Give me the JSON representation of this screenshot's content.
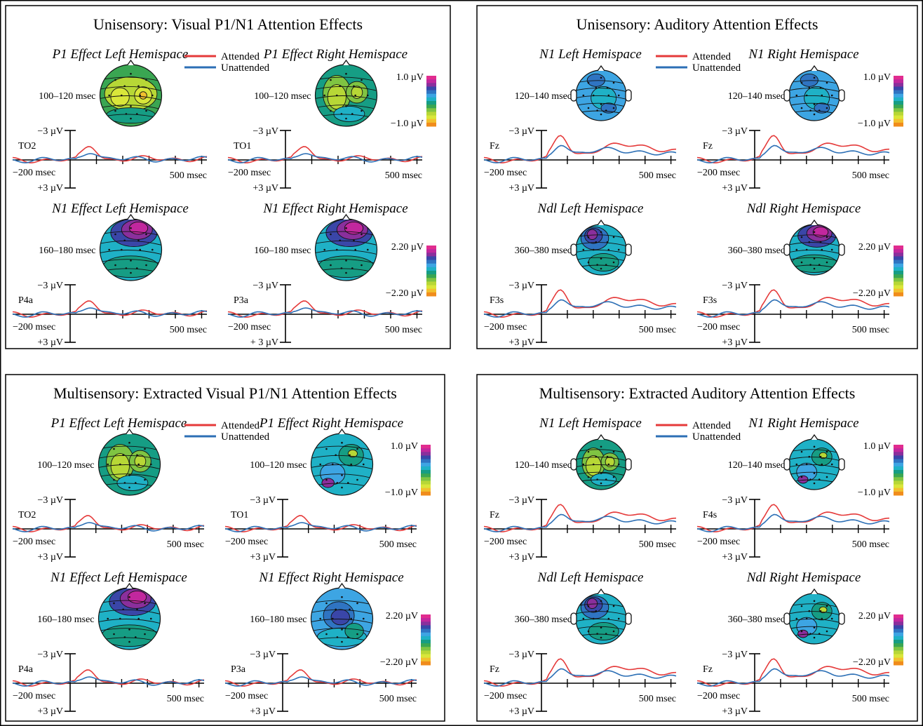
{
  "legend": {
    "attended": "Attended",
    "unattended": "Unattended"
  },
  "colors": {
    "attended": "#e53a3a",
    "unattended": "#2c6fb5",
    "scale": [
      "#f08c1c",
      "#f2c12e",
      "#d9e63a",
      "#b7d736",
      "#7fc442",
      "#3aa652",
      "#169d84",
      "#1fb1c6",
      "#3da5e3",
      "#2f74c2",
      "#3a46a8",
      "#8a2f9c",
      "#c2279e",
      "#e12c8f"
    ]
  },
  "panels": [
    {
      "id": "uni-visual",
      "title": "Unisensory: Visual P1/N1 Attention Effects",
      "rows": [
        {
          "scale_top": "1.0 µV",
          "scale_bottom": "−1.0 µV",
          "plots": [
            {
              "subtitle": "P1 Effect Left Hemispace",
              "window": "100–120 msec",
              "electrode": "TO2",
              "y_top": "−3 µV",
              "y_bottom": "+3 µV",
              "x_start": "−200 msec",
              "x_end": "500 msec",
              "map": "yellow"
            },
            {
              "subtitle": "P1 Effect Right Hemispace",
              "window": "100–120 msec",
              "electrode": "TO1",
              "y_top": "−3 µV",
              "y_bottom": "+3 µV",
              "x_start": "−200 msec",
              "x_end": "500 msec",
              "map": "yellowgreen"
            }
          ]
        },
        {
          "scale_top": "2.20 µV",
          "scale_bottom": "−2.20 µV",
          "plots": [
            {
              "subtitle": "N1 Effect Left Hemispace",
              "window": "160–180 msec",
              "electrode": "P4a",
              "y_top": "−3 µV",
              "y_bottom": "+3 µV",
              "x_start": "−200 msec",
              "x_end": "500 msec",
              "map": "magentatop"
            },
            {
              "subtitle": "N1 Effect Right Hemispace",
              "window": "160–180 msec",
              "electrode": "P3a",
              "y_top": "−3 µV",
              "y_bottom": "+ 3 µV",
              "x_start": "−200 msec",
              "x_end": "500 msec",
              "map": "magentatop"
            }
          ]
        }
      ]
    },
    {
      "id": "uni-auditory",
      "title": "Unisensory: Auditory Attention Effects",
      "rows": [
        {
          "scale_top": "1.0 µV",
          "scale_bottom": "−1.0 µV",
          "plots": [
            {
              "subtitle": "N1 Left Hemispace",
              "window": "120–140 msec",
              "electrode": "Fz",
              "y_top": "−3 µV",
              "y_bottom": "+3 µV",
              "x_start": "−200 msec",
              "x_end": "500 msec",
              "map": "blue"
            },
            {
              "subtitle": "N1 Right Hemispace",
              "window": "120–140 msec",
              "electrode": "Fz",
              "y_top": "−3 µV",
              "y_bottom": "+3 µV",
              "x_start": "−200 msec",
              "x_end": "500 msec",
              "map": "blue"
            }
          ]
        },
        {
          "scale_top": "2.20 µV",
          "scale_bottom": "−2.20 µV",
          "plots": [
            {
              "subtitle": "Ndl Left Hemispace",
              "window": "360–380 msec",
              "electrode": "F3s",
              "y_top": "−3 µV",
              "y_bottom": "+3 µV",
              "x_start": "−200 msec",
              "x_end": "500 msec",
              "map": "purplefront"
            },
            {
              "subtitle": "Ndl Right Hemispace",
              "window": "360–380 msec",
              "electrode": "F3s",
              "y_top": "−3 µV",
              "y_bottom": "+3 µV",
              "x_start": "−200 msec",
              "x_end": "500 msec",
              "map": "magentatop"
            }
          ]
        }
      ]
    },
    {
      "id": "multi-visual",
      "title": "Multisensory: Extracted Visual P1/N1 Attention Effects",
      "rows": [
        {
          "scale_top": "1.0 µV",
          "scale_bottom": "−1.0 µV",
          "plots": [
            {
              "subtitle": "P1 Effect Left Hemispace",
              "window": "100–120 msec",
              "electrode": "TO2",
              "y_top": "−3 µV",
              "y_bottom": "+3 µV",
              "x_start": "−200 msec",
              "x_end": "500 msec",
              "map": "yellowgreen"
            },
            {
              "subtitle": "P1 Effect Right Hemispace",
              "window": "100–120 msec",
              "electrode": "TO1",
              "y_top": "−3 µV",
              "y_bottom": "+3 µV",
              "x_start": "−200 msec",
              "x_end": "500 msec",
              "map": "greenblue"
            }
          ]
        },
        {
          "scale_top": "2.20 µV",
          "scale_bottom": "−2.20 µV",
          "plots": [
            {
              "subtitle": "N1 Effect Left Hemispace",
              "window": "160–180 msec",
              "electrode": "P4a",
              "y_top": "−3 µV",
              "y_bottom": "+3 µV",
              "x_start": "−200 msec",
              "x_end": "500 msec",
              "map": "magentatop"
            },
            {
              "subtitle": "N1 Effect Right Hemispace",
              "window": "160–180 msec",
              "electrode": "P3a",
              "y_top": "−3 µV",
              "y_bottom": "+3 µV",
              "x_start": "−200 msec",
              "x_end": "500 msec",
              "map": "bluecenter"
            }
          ]
        }
      ]
    },
    {
      "id": "multi-auditory",
      "title": "Multisensory: Extracted Auditory Attention Effects",
      "rows": [
        {
          "scale_top": "1.0 µV",
          "scale_bottom": "−1.0 µV",
          "plots": [
            {
              "subtitle": "N1 Left Hemispace",
              "window": "120–140 msec",
              "electrode": "Fz",
              "y_top": "−3 µV",
              "y_bottom": "+3 µV",
              "x_start": "−200 msec",
              "x_end": "500 msec",
              "map": "yellowgreen"
            },
            {
              "subtitle": "N1 Right Hemispace",
              "window": "120–140 msec",
              "electrode": "F4s",
              "y_top": "−3 µV",
              "y_bottom": "+3 µV",
              "x_start": "−200 msec",
              "x_end": "500 msec",
              "map": "greenblue"
            }
          ]
        },
        {
          "scale_top": "2.20 µV",
          "scale_bottom": "−2.20 µV",
          "plots": [
            {
              "subtitle": "Ndl Left Hemispace",
              "window": "360–380 msec",
              "electrode": "Fz",
              "y_top": "−3 µV",
              "y_bottom": "+3 µV",
              "x_start": "−200 msec",
              "x_end": "500 msec",
              "map": "purplefront"
            },
            {
              "subtitle": "Ndl Right Hemispace",
              "window": "360–380 msec",
              "electrode": "Fz",
              "y_top": "−3 µV",
              "y_bottom": "+3 µV",
              "x_start": "−200 msec",
              "x_end": "500 msec",
              "map": "greenblue"
            }
          ]
        }
      ]
    }
  ]
}
